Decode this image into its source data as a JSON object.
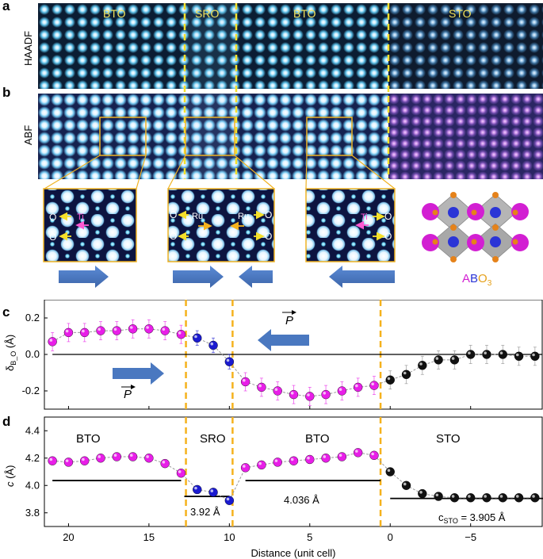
{
  "panel_labels": {
    "a": "a",
    "b": "b",
    "c": "c",
    "d": "d"
  },
  "stem": {
    "haadf_label": "HAADF",
    "abf_label": "ABF",
    "regions": [
      "BTO",
      "SRO",
      "BTO",
      "STO"
    ]
  },
  "insets": {
    "left": {
      "o_top": "O",
      "o_bottom": "O",
      "ti": "Ti"
    },
    "mid": {
      "o_left_top": "O",
      "o_left_bottom": "O",
      "ru_left": "Ru",
      "ru_right": "Ru",
      "o_right_top": "O",
      "o_right_bottom": "O"
    },
    "right": {
      "ti": "Ti",
      "o_top": "O",
      "o_bottom": "O"
    }
  },
  "structure": {
    "label_a": "A",
    "label_b": "B",
    "label_o": "O",
    "label_sub": "3"
  },
  "colors": {
    "bto": "#e81ee8",
    "sro": "#1a1ad0",
    "sto": "#111111",
    "dashed": "#f5b21d",
    "arrow": "#4a78c0"
  },
  "chart_data": [
    {
      "type": "scatter",
      "ylabel": "δB_O (Å)",
      "ylabel_main": "δ",
      "ylabel_sub": "B_O",
      "ylabel_unit": " (Å)",
      "ylim": [
        -0.3,
        0.3
      ],
      "yticks": [
        "0.2",
        "0.0",
        "-0.2"
      ],
      "xlim": [
        21.5,
        -9.5
      ],
      "vlines": [
        12.7,
        9.8,
        0.6
      ],
      "zero_line": 0,
      "polarization_label": "P",
      "series": [
        {
          "name": "BTO",
          "x": [
            21,
            20,
            19,
            18,
            17,
            16,
            15,
            14,
            13
          ],
          "y": [
            0.07,
            0.12,
            0.12,
            0.13,
            0.13,
            0.14,
            0.14,
            0.13,
            0.11
          ],
          "err": [
            0.05,
            0.05,
            0.05,
            0.05,
            0.05,
            0.05,
            0.05,
            0.05,
            0.05
          ]
        },
        {
          "name": "SRO",
          "x": [
            12,
            11,
            10
          ],
          "y": [
            0.09,
            0.05,
            -0.04
          ],
          "err": [
            0.04,
            0.04,
            0.04
          ]
        },
        {
          "name": "BTO",
          "x": [
            9,
            8,
            7,
            6,
            5,
            4,
            3,
            2,
            1
          ],
          "y": [
            -0.15,
            -0.18,
            -0.2,
            -0.22,
            -0.23,
            -0.22,
            -0.2,
            -0.18,
            -0.17
          ],
          "err": [
            0.05,
            0.05,
            0.05,
            0.05,
            0.05,
            0.05,
            0.05,
            0.05,
            0.05
          ]
        },
        {
          "name": "STO",
          "x": [
            0,
            -1,
            -2,
            -3,
            -4,
            -5,
            -6,
            -7,
            -8,
            -9
          ],
          "y": [
            -0.14,
            -0.11,
            -0.06,
            -0.03,
            -0.03,
            0.0,
            0.0,
            0.0,
            -0.01,
            -0.01
          ],
          "err": [
            0.05,
            0.05,
            0.05,
            0.05,
            0.05,
            0.05,
            0.05,
            0.05,
            0.05,
            0.05
          ]
        }
      ]
    },
    {
      "type": "scatter",
      "ylabel": "c (Å)",
      "ylabel_main": "c",
      "ylabel_unit": " (Å)",
      "xlabel": "Distance (unit cell)",
      "ylim": [
        3.7,
        4.5
      ],
      "yticks": [
        "4.4",
        "4.2",
        "4.0",
        "3.8"
      ],
      "xlim": [
        21.5,
        -9.5
      ],
      "xticks": [
        "20",
        "15",
        "10",
        "5",
        "0",
        "−5"
      ],
      "vlines": [
        12.7,
        9.8,
        0.6
      ],
      "region_labels": [
        "BTO",
        "SRO",
        "BTO",
        "STO"
      ],
      "annotations": {
        "sro": "3.92 Å",
        "bto": "4.036 Å",
        "sto_main": "c",
        "sto_sub": "STO",
        "sto_val": " = 3.905 Å"
      },
      "hlines": [
        {
          "x1": 21,
          "x2": 13,
          "y": 4.036
        },
        {
          "x1": 12.8,
          "x2": 10.0,
          "y": 3.92
        },
        {
          "x1": 9,
          "x2": 0.6,
          "y": 4.036
        },
        {
          "x1": 0,
          "x2": -9.5,
          "y": 3.905
        }
      ],
      "series": [
        {
          "name": "BTO",
          "x": [
            21,
            20,
            19,
            18,
            17,
            16,
            15,
            14,
            13
          ],
          "y": [
            4.18,
            4.17,
            4.18,
            4.2,
            4.21,
            4.21,
            4.2,
            4.16,
            4.09
          ]
        },
        {
          "name": "SRO",
          "x": [
            12,
            11,
            10
          ],
          "y": [
            3.97,
            3.95,
            3.89
          ]
        },
        {
          "name": "BTO",
          "x": [
            9,
            8,
            7,
            6,
            5,
            4,
            3,
            2,
            1
          ],
          "y": [
            4.13,
            4.15,
            4.17,
            4.18,
            4.19,
            4.2,
            4.21,
            4.24,
            4.22
          ]
        },
        {
          "name": "STO",
          "x": [
            0,
            -1,
            -2,
            -3,
            -4,
            -5,
            -6,
            -7,
            -8,
            -9
          ],
          "y": [
            4.1,
            4.0,
            3.94,
            3.92,
            3.91,
            3.91,
            3.91,
            3.91,
            3.91,
            3.91
          ]
        }
      ]
    }
  ]
}
